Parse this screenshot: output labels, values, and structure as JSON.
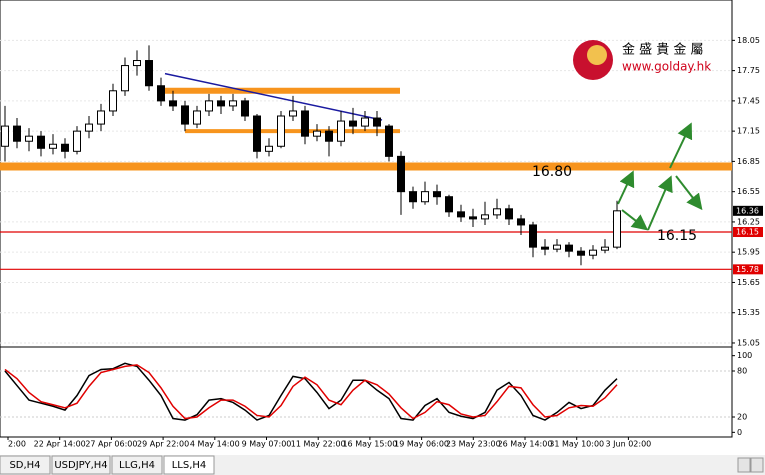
{
  "chart_data": {
    "type": "candlestick",
    "ylim": [
      15.02,
      18.45
    ],
    "yticks": [
      15.05,
      15.35,
      15.65,
      15.95,
      16.25,
      16.55,
      16.85,
      17.15,
      17.45,
      17.75,
      18.05
    ],
    "grid": true,
    "candles": [
      [
        17.0,
        17.4,
        16.85,
        17.2
      ],
      [
        17.2,
        17.28,
        16.98,
        17.05
      ],
      [
        17.05,
        17.18,
        16.95,
        17.1
      ],
      [
        17.1,
        17.15,
        16.9,
        16.98
      ],
      [
        16.98,
        17.12,
        16.92,
        17.02
      ],
      [
        17.02,
        17.08,
        16.88,
        16.95
      ],
      [
        16.95,
        17.2,
        16.92,
        17.15
      ],
      [
        17.15,
        17.3,
        17.08,
        17.22
      ],
      [
        17.22,
        17.42,
        17.15,
        17.35
      ],
      [
        17.35,
        17.62,
        17.3,
        17.55
      ],
      [
        17.55,
        17.88,
        17.5,
        17.8
      ],
      [
        17.8,
        17.95,
        17.7,
        17.85
      ],
      [
        17.85,
        18.0,
        17.55,
        17.6
      ],
      [
        17.6,
        17.68,
        17.4,
        17.45
      ],
      [
        17.45,
        17.55,
        17.35,
        17.4
      ],
      [
        17.4,
        17.45,
        17.15,
        17.22
      ],
      [
        17.22,
        17.4,
        17.18,
        17.35
      ],
      [
        17.35,
        17.52,
        17.3,
        17.45
      ],
      [
        17.45,
        17.5,
        17.32,
        17.4
      ],
      [
        17.4,
        17.52,
        17.35,
        17.45
      ],
      [
        17.45,
        17.48,
        17.25,
        17.3
      ],
      [
        17.3,
        17.32,
        16.88,
        16.95
      ],
      [
        16.95,
        17.08,
        16.9,
        17.0
      ],
      [
        17.0,
        17.35,
        16.98,
        17.3
      ],
      [
        17.3,
        17.5,
        17.25,
        17.35
      ],
      [
        17.35,
        17.4,
        17.02,
        17.1
      ],
      [
        17.1,
        17.22,
        17.05,
        17.15
      ],
      [
        17.15,
        17.2,
        16.9,
        17.05
      ],
      [
        17.05,
        17.35,
        17.0,
        17.25
      ],
      [
        17.25,
        17.38,
        17.12,
        17.2
      ],
      [
        17.2,
        17.35,
        17.15,
        17.28
      ],
      [
        17.28,
        17.35,
        17.1,
        17.2
      ],
      [
        17.2,
        17.22,
        16.85,
        16.9
      ],
      [
        16.9,
        16.95,
        16.32,
        16.55
      ],
      [
        16.55,
        16.6,
        16.38,
        16.45
      ],
      [
        16.45,
        16.65,
        16.42,
        16.55
      ],
      [
        16.55,
        16.62,
        16.42,
        16.5
      ],
      [
        16.5,
        16.52,
        16.3,
        16.35
      ],
      [
        16.35,
        16.42,
        16.25,
        16.3
      ],
      [
        16.3,
        16.38,
        16.2,
        16.28
      ],
      [
        16.28,
        16.45,
        16.22,
        16.32
      ],
      [
        16.32,
        16.48,
        16.28,
        16.38
      ],
      [
        16.38,
        16.42,
        16.22,
        16.28
      ],
      [
        16.28,
        16.32,
        16.12,
        16.22
      ],
      [
        16.22,
        16.25,
        15.9,
        16.0
      ],
      [
        16.0,
        16.08,
        15.92,
        15.98
      ],
      [
        15.98,
        16.08,
        15.95,
        16.02
      ],
      [
        16.02,
        16.05,
        15.9,
        15.96
      ],
      [
        15.96,
        16.0,
        15.82,
        15.92
      ],
      [
        15.92,
        16.02,
        15.88,
        15.97
      ],
      [
        15.97,
        16.08,
        15.94,
        16.0
      ],
      [
        16.0,
        16.46,
        15.98,
        16.36
      ]
    ],
    "levels": [
      {
        "value": 16.8,
        "color": "#f7941d"
      },
      {
        "value": 17.55,
        "color": "#f7941d"
      },
      {
        "value": 17.15,
        "color": "#f7941d"
      },
      {
        "value": 16.15,
        "color": "#e00000"
      },
      {
        "value": 15.78,
        "color": "#e00000"
      }
    ],
    "price_tags": [
      {
        "value": 16.36,
        "color": "#000000"
      },
      {
        "value": 16.15,
        "color": "#e00000"
      },
      {
        "value": 15.78,
        "color": "#e00000"
      }
    ],
    "trendline": {
      "from": 17.72,
      "to": 17.26,
      "color": "#1a1aa0"
    },
    "annotations": [
      "16.80",
      "16.15"
    ],
    "x_labels": [
      "2:00",
      "22 Apr 14:00",
      "27 Apr 06:00",
      "29 Apr 22:00",
      "4 May 14:00",
      "9 May 07:00",
      "11 May 22:00",
      "16 May 15:00",
      "19 May 06:00",
      "23 May 23:00",
      "26 May 14:00",
      "31 May 10:00",
      "3 Jun 02:00"
    ],
    "oscillator": {
      "type": "line",
      "ylim": [
        -10,
        110
      ],
      "yticks": [
        0,
        20,
        80,
        100
      ],
      "series": [
        {
          "color": "#000000",
          "values": [
            80,
            61,
            42,
            38,
            34,
            29,
            48,
            74,
            82,
            83,
            90,
            86,
            68,
            48,
            18,
            16,
            23,
            42,
            44,
            39,
            29,
            16,
            22,
            48,
            73,
            70,
            52,
            31,
            42,
            68,
            68,
            55,
            44,
            18,
            16,
            35,
            44,
            26,
            21,
            18,
            26,
            55,
            65,
            48,
            22,
            16,
            26,
            39,
            31,
            35,
            55,
            70
          ]
        },
        {
          "color": "#e00000",
          "values": [
            82,
            70,
            52,
            40,
            36,
            32,
            38,
            60,
            78,
            82,
            86,
            88,
            78,
            58,
            34,
            18,
            20,
            32,
            42,
            42,
            34,
            22,
            20,
            35,
            60,
            72,
            62,
            42,
            36,
            55,
            68,
            62,
            50,
            32,
            18,
            26,
            40,
            36,
            24,
            20,
            22,
            40,
            60,
            58,
            36,
            20,
            22,
            32,
            35,
            34,
            45,
            62
          ]
        }
      ]
    }
  },
  "logo": {
    "name": "金 盛 貴 金 屬",
    "url": "www.golday.hk"
  },
  "tabs": [
    "SD,H4",
    "USDJPY,H4",
    "LLG,H4",
    "LLS,H4"
  ]
}
